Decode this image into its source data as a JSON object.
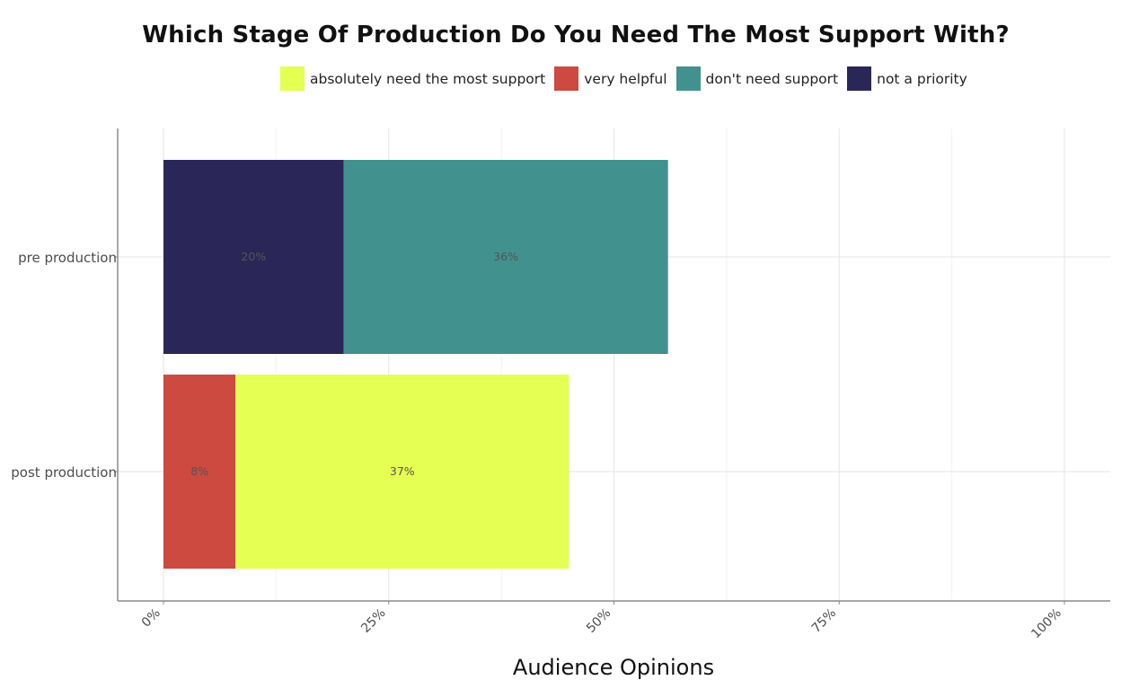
{
  "chart_data": {
    "type": "bar",
    "orientation": "horizontal",
    "stacked": true,
    "title": "Which Stage Of Production Do You Need The Most Support With?",
    "xlabel": "Audience Opinions",
    "ylabel": "",
    "xlim": [
      0,
      100
    ],
    "x_ticks": [
      "0%",
      "25%",
      "50%",
      "75%",
      "100%"
    ],
    "categories": [
      "pre production",
      "post production"
    ],
    "legend_position": "top",
    "grid": true,
    "series": [
      {
        "name": "absolutely need the most support",
        "color": "#e5ff52",
        "values": [
          0,
          37
        ]
      },
      {
        "name": "very helpful",
        "color": "#cc4a3f",
        "values": [
          0,
          8
        ]
      },
      {
        "name": "don't need support",
        "color": "#41918f",
        "values": [
          36,
          0
        ]
      },
      {
        "name": "not a priority",
        "color": "#2a2657",
        "values": [
          20,
          0
        ]
      }
    ],
    "stack_order": [
      [
        "not a priority",
        "don't need support"
      ],
      [
        "very helpful",
        "absolutely need the most support"
      ]
    ],
    "data_labels": [
      {
        "category": "pre production",
        "series": "not a priority",
        "text": "20%"
      },
      {
        "category": "pre production",
        "series": "don't need support",
        "text": "36%"
      },
      {
        "category": "post production",
        "series": "very helpful",
        "text": "8%"
      },
      {
        "category": "post production",
        "series": "absolutely need the most support",
        "text": "37%"
      }
    ]
  }
}
